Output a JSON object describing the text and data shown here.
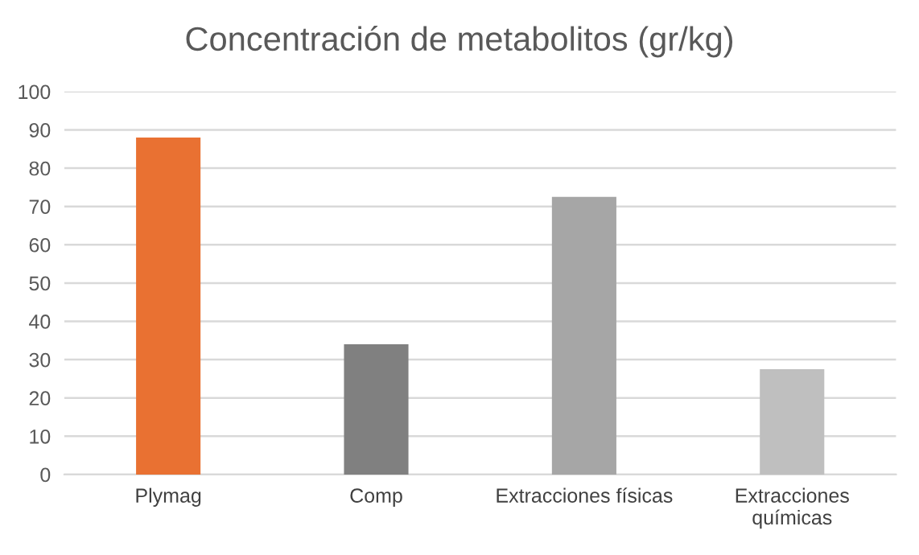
{
  "chart_data": {
    "type": "bar",
    "title": "Concentración de metabolitos (gr/kg)",
    "categories": [
      "Plymag",
      "Comp",
      "Extracciones físicas",
      "Extracciones\nquímicas"
    ],
    "values": [
      88,
      34,
      72.5,
      27.5
    ],
    "colors": [
      "#e97132",
      "#808080",
      "#a6a6a6",
      "#bfbfbf"
    ],
    "ylim": [
      0,
      100
    ],
    "yticks": [
      0,
      10,
      20,
      30,
      40,
      50,
      60,
      70,
      80,
      90,
      100
    ],
    "grid": "y"
  }
}
